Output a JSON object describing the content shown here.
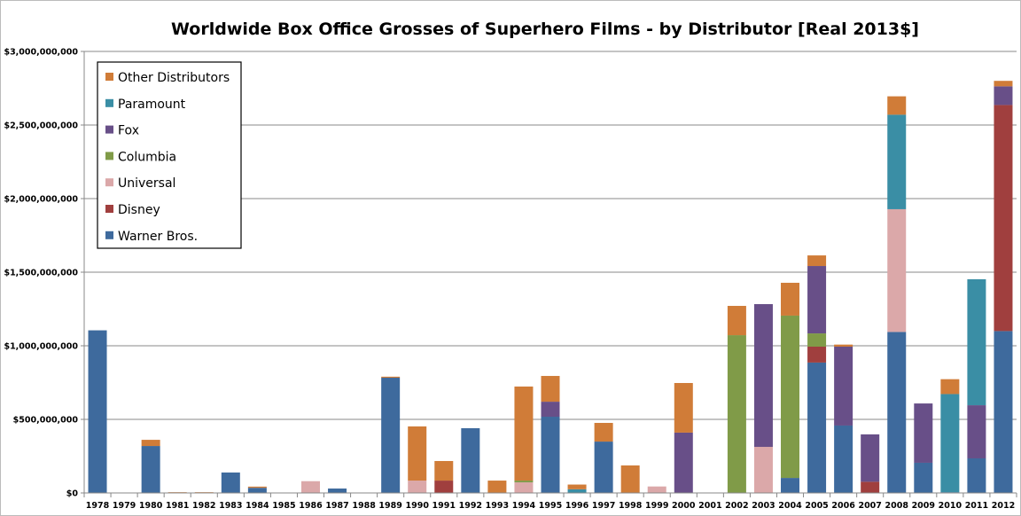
{
  "chart_data": {
    "type": "bar",
    "stacked": true,
    "title": "Worldwide Box Office Grosses of Superhero Films - by Distributor [Real 2013$]",
    "xlabel": "",
    "ylabel": "",
    "ylim": [
      0,
      3000000000
    ],
    "yticks": [
      0,
      500000000,
      1000000000,
      1500000000,
      2000000000,
      2500000000,
      3000000000
    ],
    "ytick_labels": [
      "$0",
      "$500,000,000",
      "$1,000,000,000",
      "$1,500,000,000",
      "$2,000,000,000",
      "$2,500,000,000",
      "$3,000,000,000"
    ],
    "grid": true,
    "legend_placement": "top-left",
    "categories": [
      "1978",
      "1979",
      "1980",
      "1981",
      "1982",
      "1983",
      "1984",
      "1985",
      "1986",
      "1987",
      "1988",
      "1989",
      "1990",
      "1991",
      "1992",
      "1993",
      "1994",
      "1995",
      "1996",
      "1997",
      "1998",
      "1999",
      "2000",
      "2001",
      "2002",
      "2003",
      "2004",
      "2005",
      "2006",
      "2007",
      "2008",
      "2009",
      "2010",
      "2011",
      "2012"
    ],
    "units": "USD millions (values below)",
    "series": [
      {
        "name": "Warner Bros.",
        "color": "#3e6a9d",
        "values": [
          1105,
          0,
          319,
          0,
          0,
          139,
          35,
          0,
          0,
          30,
          0,
          783,
          0,
          0,
          440,
          0,
          0,
          518,
          0,
          349,
          0,
          0,
          0,
          0,
          0,
          0,
          102,
          886,
          458,
          0,
          1094,
          205,
          5,
          235,
          1100
        ]
      },
      {
        "name": "Disney",
        "color": "#a03f3e",
        "values": [
          0,
          0,
          0,
          0,
          0,
          0,
          0,
          0,
          0,
          0,
          0,
          0,
          0,
          84,
          0,
          0,
          0,
          0,
          0,
          0,
          0,
          0,
          0,
          0,
          0,
          0,
          0,
          108,
          0,
          76,
          0,
          0,
          0,
          0,
          1536
        ]
      },
      {
        "name": "Universal",
        "color": "#dba8a9",
        "values": [
          0,
          0,
          0,
          0,
          0,
          0,
          0,
          0,
          80,
          0,
          0,
          0,
          84,
          0,
          0,
          0,
          72,
          0,
          0,
          0,
          0,
          44,
          0,
          0,
          0,
          313,
          0,
          0,
          0,
          0,
          834,
          0,
          0,
          0,
          0
        ]
      },
      {
        "name": "Columbia",
        "color": "#809b48",
        "values": [
          0,
          0,
          0,
          0,
          0,
          0,
          0,
          0,
          0,
          0,
          0,
          0,
          0,
          0,
          0,
          0,
          12,
          0,
          0,
          0,
          0,
          0,
          0,
          0,
          1072,
          0,
          1103,
          90,
          0,
          0,
          0,
          0,
          0,
          0,
          0
        ]
      },
      {
        "name": "Fox",
        "color": "#684f88",
        "values": [
          0,
          0,
          0,
          0,
          0,
          0,
          0,
          0,
          0,
          0,
          0,
          0,
          0,
          0,
          0,
          0,
          0,
          102,
          0,
          0,
          0,
          0,
          410,
          0,
          0,
          970,
          0,
          458,
          536,
          322,
          0,
          403,
          0,
          361,
          127
        ]
      },
      {
        "name": "Paramount",
        "color": "#3a8ea5",
        "values": [
          0,
          0,
          0,
          0,
          0,
          0,
          0,
          0,
          0,
          0,
          0,
          0,
          0,
          0,
          0,
          0,
          0,
          0,
          25,
          0,
          0,
          0,
          0,
          0,
          0,
          0,
          0,
          0,
          0,
          0,
          642,
          0,
          667,
          856,
          0
        ]
      },
      {
        "name": "Other Distributors",
        "color": "#d07c38",
        "values": [
          0,
          0,
          42,
          5,
          5,
          0,
          8,
          0,
          0,
          0,
          0,
          7,
          368,
          133,
          0,
          84,
          639,
          175,
          32,
          127,
          187,
          0,
          337,
          0,
          199,
          0,
          223,
          72,
          14,
          0,
          125,
          0,
          101,
          0,
          37
        ]
      }
    ]
  }
}
